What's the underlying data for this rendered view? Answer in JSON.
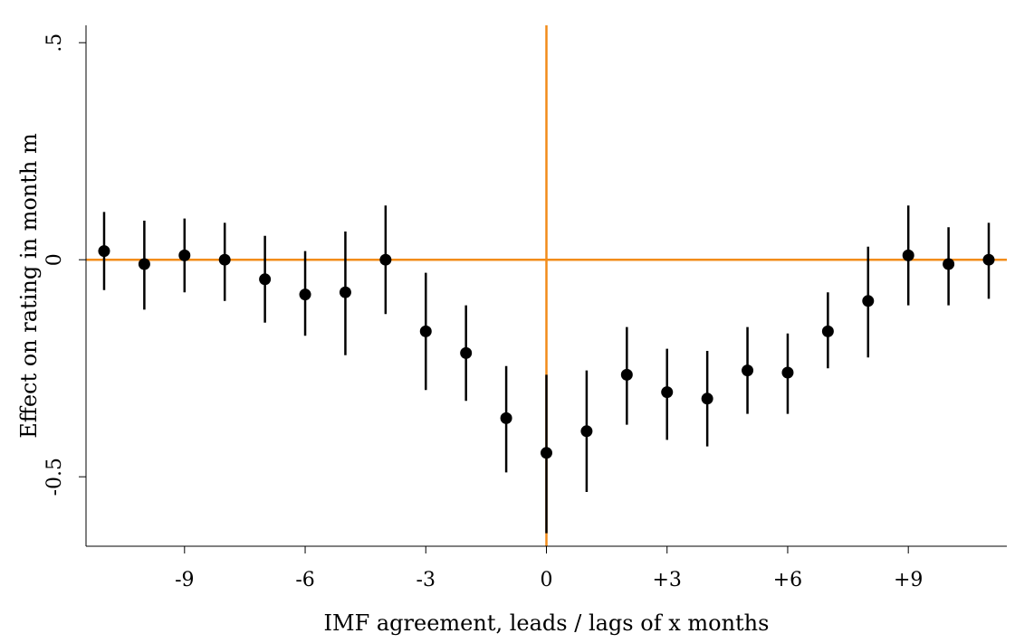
{
  "chart_data": {
    "type": "scatter",
    "xlabel": "IMF agreement, leads / lags of x months",
    "ylabel": "Effect on rating in month m",
    "xlim": [
      -11.45,
      11.45
    ],
    "ylim": [
      -0.66,
      0.54
    ],
    "x_ticks": [
      {
        "value": -9,
        "label": "-9"
      },
      {
        "value": -6,
        "label": "-6"
      },
      {
        "value": -3,
        "label": "-3"
      },
      {
        "value": 0,
        "label": "0"
      },
      {
        "value": 3,
        "label": "+3"
      },
      {
        "value": 6,
        "label": "+6"
      },
      {
        "value": 9,
        "label": "+9"
      }
    ],
    "y_ticks": [
      {
        "value": 0.5,
        "label": ".5"
      },
      {
        "value": 0,
        "label": "0"
      },
      {
        "value": -0.5,
        "label": "-0.5"
      }
    ],
    "reference_lines": {
      "x": 0,
      "y": 0,
      "color": "#f28c1a"
    },
    "point_color": "#000000",
    "grid": false,
    "series": [
      {
        "points": [
          {
            "x": -11,
            "y": 0.02,
            "lo": -0.07,
            "hi": 0.11
          },
          {
            "x": -10,
            "y": -0.01,
            "lo": -0.115,
            "hi": 0.09
          },
          {
            "x": -9,
            "y": 0.01,
            "lo": -0.075,
            "hi": 0.095
          },
          {
            "x": -8,
            "y": 0.0,
            "lo": -0.095,
            "hi": 0.085
          },
          {
            "x": -7,
            "y": -0.045,
            "lo": -0.145,
            "hi": 0.055
          },
          {
            "x": -6,
            "y": -0.08,
            "lo": -0.175,
            "hi": 0.02
          },
          {
            "x": -5,
            "y": -0.075,
            "lo": -0.22,
            "hi": 0.065
          },
          {
            "x": -4,
            "y": 0.0,
            "lo": -0.125,
            "hi": 0.125
          },
          {
            "x": -3,
            "y": -0.165,
            "lo": -0.3,
            "hi": -0.03
          },
          {
            "x": -2,
            "y": -0.215,
            "lo": -0.325,
            "hi": -0.105
          },
          {
            "x": -1,
            "y": -0.365,
            "lo": -0.49,
            "hi": -0.245
          },
          {
            "x": 0,
            "y": -0.445,
            "lo": -0.63,
            "hi": -0.265
          },
          {
            "x": 1,
            "y": -0.395,
            "lo": -0.535,
            "hi": -0.255
          },
          {
            "x": 2,
            "y": -0.265,
            "lo": -0.38,
            "hi": -0.155
          },
          {
            "x": 3,
            "y": -0.305,
            "lo": -0.415,
            "hi": -0.205
          },
          {
            "x": 4,
            "y": -0.32,
            "lo": -0.43,
            "hi": -0.21
          },
          {
            "x": 5,
            "y": -0.255,
            "lo": -0.355,
            "hi": -0.155
          },
          {
            "x": 6,
            "y": -0.26,
            "lo": -0.355,
            "hi": -0.17
          },
          {
            "x": 7,
            "y": -0.165,
            "lo": -0.25,
            "hi": -0.075
          },
          {
            "x": 8,
            "y": -0.095,
            "lo": -0.225,
            "hi": 0.03
          },
          {
            "x": 9,
            "y": 0.01,
            "lo": -0.105,
            "hi": 0.125
          },
          {
            "x": 10,
            "y": -0.01,
            "lo": -0.105,
            "hi": 0.075
          },
          {
            "x": 11,
            "y": 0.0,
            "lo": -0.09,
            "hi": 0.085
          }
        ]
      }
    ]
  }
}
